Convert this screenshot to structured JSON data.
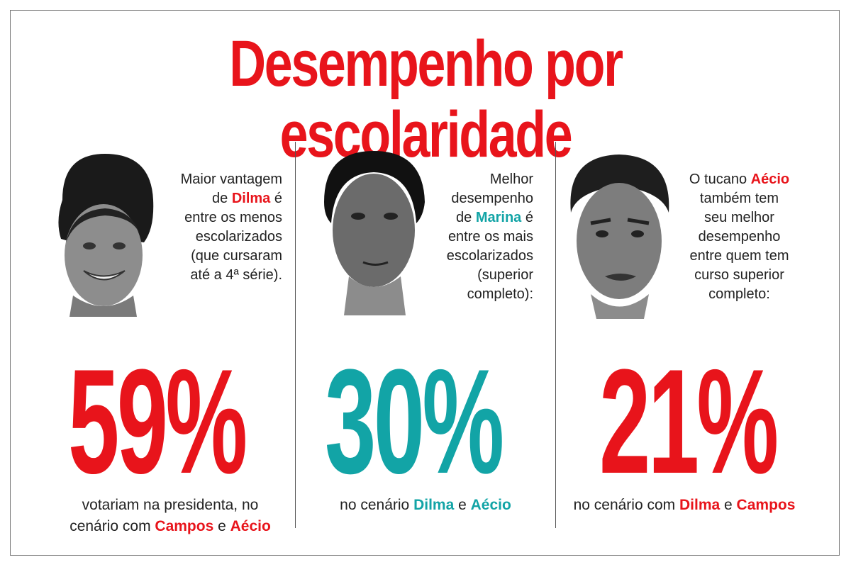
{
  "title": "Desempenho por escolaridade",
  "colors": {
    "red": "#e8141b",
    "teal": "#12a4a6",
    "text": "#222222"
  },
  "panels": [
    {
      "subject": "Dilma",
      "blurb_lines": [
        "Maior vantagem",
        "de ",
        "Dilma",
        " é",
        "entre os menos",
        "escolarizados",
        "(que cursaram",
        "até a 4ª série)."
      ],
      "value": "59%",
      "value_percent": 59,
      "accent": "red",
      "caption_lines": [
        "votariam na presidenta, no",
        "cenário com ",
        "Campos",
        " e ",
        "Aécio"
      ]
    },
    {
      "subject": "Marina",
      "blurb_lines": [
        "Melhor",
        "desempenho",
        "de ",
        "Marina",
        " é",
        "entre os mais",
        "escolarizados",
        "(superior",
        "completo):"
      ],
      "value": "30%",
      "value_percent": 30,
      "accent": "teal",
      "caption_lines": [
        "no cenário ",
        "Dilma",
        " e ",
        "Aécio"
      ]
    },
    {
      "subject": "Aécio",
      "blurb_lines": [
        "O tucano ",
        "Aécio",
        "também tem",
        "seu melhor",
        "desempenho",
        "entre quem tem",
        "curso superior",
        "completo:"
      ],
      "value": "21%",
      "value_percent": 21,
      "accent": "red",
      "caption_lines": [
        "no cenário com ",
        "Dilma",
        " e ",
        "Campos"
      ]
    }
  ]
}
